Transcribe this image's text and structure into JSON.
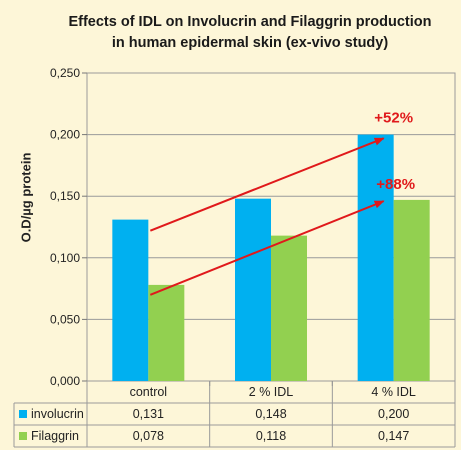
{
  "chart_data": {
    "type": "bar",
    "title_line1": "Effects of IDL on Involucrin and Filaggrin production",
    "title_line2": "in human epidermal skin (ex-vivo study)",
    "ylabel": "O.D/µg protein",
    "categories": [
      "control",
      "2 % IDL",
      "4 % IDL"
    ],
    "ylim": [
      0,
      0.25
    ],
    "yticks": [
      "0,000",
      "0,050",
      "0,100",
      "0,150",
      "0,200",
      "0,250"
    ],
    "ytick_values": [
      0,
      0.05,
      0.1,
      0.15,
      0.2,
      0.25
    ],
    "grid": true,
    "series": [
      {
        "name": "involucrin",
        "color": "#00b0f0",
        "values": [
          0.131,
          0.148,
          0.2
        ],
        "labels": [
          "0,131",
          "0,148",
          "0,200"
        ]
      },
      {
        "name": "Filaggrin",
        "color": "#92d050",
        "values": [
          0.078,
          0.118,
          0.147
        ],
        "labels": [
          "0,078",
          "0,118",
          "0,147"
        ]
      }
    ],
    "annotations": [
      {
        "text": "+52%",
        "color": "#e0191b",
        "from": [
          0,
          0.122
        ],
        "to": [
          2,
          0.197
        ]
      },
      {
        "text": "+88%",
        "color": "#e0191b",
        "from": [
          0,
          0.07
        ],
        "to": [
          2,
          0.146
        ]
      }
    ]
  }
}
